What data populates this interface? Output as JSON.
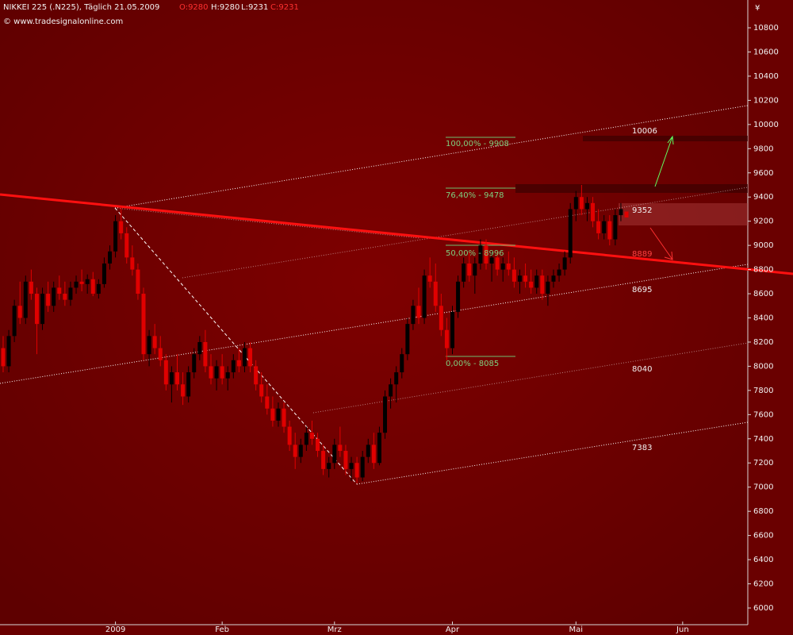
{
  "chart_data": {
    "type": "candlestick",
    "title": "NIKKEI 225 (.N225), Täglich 21.05.2009",
    "header_values": [
      "O:9280",
      "H:9280",
      "L:9231",
      "C:9231"
    ],
    "watermark": "© www.tradesignalonline.com",
    "currency": "¥",
    "up_color": "#000000",
    "down_color": "#e00000",
    "xlim": [
      -0.56,
      132.6
    ],
    "xticks": [
      {
        "value": 20,
        "label": "2009"
      },
      {
        "value": 39,
        "label": "Feb"
      },
      {
        "value": 59,
        "label": "Mrz"
      },
      {
        "value": 80,
        "label": "Apr"
      },
      {
        "value": 102,
        "label": "Mai"
      },
      {
        "value": 121,
        "label": "Jun"
      }
    ],
    "ylim": [
      5862,
      11030
    ],
    "yticks": [
      6000,
      6200,
      6400,
      6600,
      6800,
      7000,
      7200,
      7400,
      7600,
      7800,
      8000,
      8200,
      8400,
      8600,
      8800,
      9000,
      9200,
      9400,
      9600,
      9800,
      10000,
      10200,
      10400,
      10600,
      10800
    ],
    "fib_labels": [
      "100,00% - 9908",
      "76,40% - 9478",
      "50,00% - 8996",
      "0,00% - 8085"
    ],
    "level_labels": [
      "10006",
      "9352",
      "8889",
      "8695",
      "8040",
      "7383"
    ],
    "ohlc": [
      [
        8150,
        8250,
        7950,
        8000
      ],
      [
        8000,
        8300,
        7950,
        8250
      ],
      [
        8250,
        8550,
        8200,
        8500
      ],
      [
        8500,
        8700,
        8350,
        8400
      ],
      [
        8400,
        8750,
        8350,
        8700
      ],
      [
        8700,
        8800,
        8550,
        8600
      ],
      [
        8600,
        8650,
        8100,
        8350
      ],
      [
        8350,
        8650,
        8300,
        8600
      ],
      [
        8600,
        8700,
        8450,
        8500
      ],
      [
        8500,
        8700,
        8450,
        8650
      ],
      [
        8650,
        8750,
        8550,
        8600
      ],
      [
        8600,
        8700,
        8500,
        8550
      ],
      [
        8550,
        8700,
        8500,
        8650
      ],
      [
        8650,
        8750,
        8600,
        8700
      ],
      [
        8700,
        8800,
        8620,
        8680
      ],
      [
        8680,
        8760,
        8600,
        8720
      ],
      [
        8720,
        8780,
        8580,
        8600
      ],
      [
        8600,
        8720,
        8560,
        8680
      ],
      [
        8680,
        8900,
        8650,
        8850
      ],
      [
        8850,
        9000,
        8800,
        8950
      ],
      [
        8950,
        9250,
        8900,
        9200
      ],
      [
        9200,
        9320,
        9050,
        9100
      ],
      [
        9100,
        9150,
        8850,
        8900
      ],
      [
        8900,
        9000,
        8750,
        8800
      ],
      [
        8800,
        8850,
        8550,
        8600
      ],
      [
        8600,
        8650,
        8050,
        8100
      ],
      [
        8100,
        8300,
        8000,
        8250
      ],
      [
        8250,
        8350,
        8100,
        8150
      ],
      [
        8150,
        8250,
        8000,
        8050
      ],
      [
        8050,
        8100,
        7800,
        7850
      ],
      [
        7850,
        8000,
        7700,
        7950
      ],
      [
        7950,
        8100,
        7800,
        7850
      ],
      [
        7850,
        7950,
        7680,
        7750
      ],
      [
        7750,
        8000,
        7700,
        7950
      ],
      [
        7950,
        8150,
        7900,
        8100
      ],
      [
        8100,
        8250,
        8050,
        8200
      ],
      [
        8200,
        8300,
        7950,
        8000
      ],
      [
        8000,
        8100,
        7850,
        7900
      ],
      [
        7900,
        8050,
        7800,
        8000
      ],
      [
        8000,
        8100,
        7850,
        7900
      ],
      [
        7900,
        8000,
        7800,
        7950
      ],
      [
        7950,
        8100,
        7900,
        8050
      ],
      [
        8050,
        8150,
        7950,
        8000
      ],
      [
        8000,
        8200,
        7950,
        8150
      ],
      [
        8150,
        8200,
        7950,
        8000
      ],
      [
        8000,
        8050,
        7800,
        7850
      ],
      [
        7850,
        7950,
        7700,
        7750
      ],
      [
        7750,
        7850,
        7600,
        7650
      ],
      [
        7650,
        7750,
        7500,
        7550
      ],
      [
        7550,
        7700,
        7500,
        7650
      ],
      [
        7650,
        7700,
        7450,
        7500
      ],
      [
        7500,
        7550,
        7300,
        7350
      ],
      [
        7350,
        7450,
        7150,
        7250
      ],
      [
        7250,
        7400,
        7200,
        7350
      ],
      [
        7350,
        7500,
        7300,
        7450
      ],
      [
        7450,
        7550,
        7350,
        7400
      ],
      [
        7400,
        7450,
        7250,
        7300
      ],
      [
        7300,
        7350,
        7100,
        7150
      ],
      [
        7150,
        7250,
        7080,
        7200
      ],
      [
        7200,
        7400,
        7150,
        7350
      ],
      [
        7350,
        7500,
        7250,
        7300
      ],
      [
        7300,
        7350,
        7100,
        7150
      ],
      [
        7150,
        7250,
        7050,
        7200
      ],
      [
        7200,
        7250,
        7030,
        7080
      ],
      [
        7080,
        7300,
        7050,
        7250
      ],
      [
        7250,
        7400,
        7200,
        7350
      ],
      [
        7350,
        7450,
        7150,
        7200
      ],
      [
        7200,
        7500,
        7180,
        7450
      ],
      [
        7450,
        7800,
        7400,
        7750
      ],
      [
        7750,
        7900,
        7650,
        7850
      ],
      [
        7850,
        8000,
        7700,
        7950
      ],
      [
        7950,
        8150,
        7900,
        8100
      ],
      [
        8100,
        8400,
        8050,
        8350
      ],
      [
        8350,
        8550,
        8300,
        8500
      ],
      [
        8500,
        8650,
        8350,
        8400
      ],
      [
        8400,
        8800,
        8350,
        8750
      ],
      [
        8750,
        8900,
        8650,
        8700
      ],
      [
        8700,
        8850,
        8450,
        8500
      ],
      [
        8500,
        8600,
        8250,
        8300
      ],
      [
        8300,
        8400,
        8050,
        8150
      ],
      [
        8150,
        8500,
        8100,
        8450
      ],
      [
        8450,
        8750,
        8400,
        8700
      ],
      [
        8700,
        8900,
        8650,
        8850
      ],
      [
        8850,
        8950,
        8700,
        8750
      ],
      [
        8750,
        8900,
        8600,
        8850
      ],
      [
        8850,
        9050,
        8800,
        9000
      ],
      [
        9000,
        9050,
        8800,
        8850
      ],
      [
        8850,
        8950,
        8700,
        8900
      ],
      [
        8900,
        8950,
        8750,
        8800
      ],
      [
        8800,
        8900,
        8700,
        8850
      ],
      [
        8850,
        8950,
        8750,
        8800
      ],
      [
        8800,
        8900,
        8650,
        8700
      ],
      [
        8700,
        8800,
        8600,
        8750
      ],
      [
        8750,
        8850,
        8650,
        8700
      ],
      [
        8700,
        8800,
        8600,
        8650
      ],
      [
        8650,
        8800,
        8600,
        8750
      ],
      [
        8750,
        8800,
        8550,
        8600
      ],
      [
        8600,
        8750,
        8500,
        8700
      ],
      [
        8700,
        8800,
        8650,
        8750
      ],
      [
        8750,
        8850,
        8700,
        8800
      ],
      [
        8800,
        8950,
        8750,
        8900
      ],
      [
        8900,
        9350,
        8850,
        9300
      ],
      [
        9300,
        9450,
        9200,
        9400
      ],
      [
        9400,
        9500,
        9250,
        9300
      ],
      [
        9300,
        9400,
        9200,
        9350
      ],
      [
        9350,
        9400,
        9150,
        9200
      ],
      [
        9200,
        9300,
        9050,
        9100
      ],
      [
        9100,
        9250,
        9050,
        9200
      ],
      [
        9200,
        9250,
        9000,
        9050
      ],
      [
        9050,
        9300,
        9000,
        9250
      ],
      [
        9250,
        9350,
        9200,
        9300
      ],
      [
        9280,
        9280,
        9231,
        9231
      ]
    ]
  }
}
